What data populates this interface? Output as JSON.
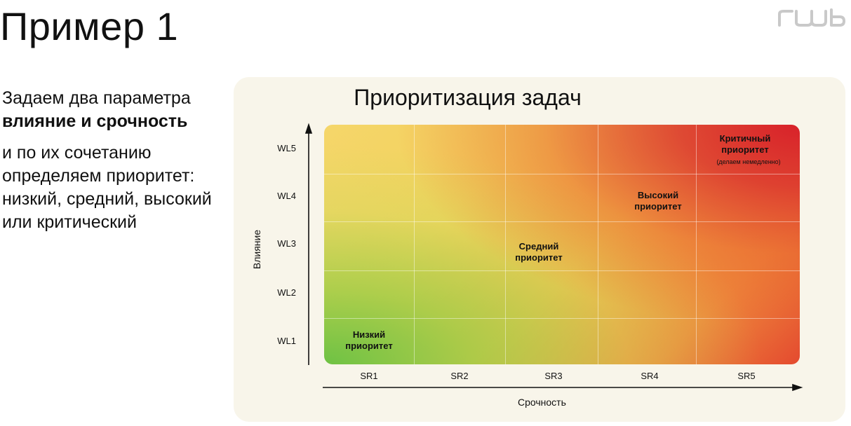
{
  "slide": {
    "title": "Пример 1",
    "logo_text": "RWB"
  },
  "left_text": {
    "line1": "Задаем два параметра",
    "line2_bold": "влияние и срочность",
    "para2": "и по их сочетанию определяем приоритет: низкий, средний, высокий или критический"
  },
  "chart_data": {
    "type": "heatmap",
    "title": "Приоритизация задач",
    "xlabel": "Срочность",
    "ylabel": "Влияние",
    "x_categories": [
      "SR1",
      "SR2",
      "SR3",
      "SR4",
      "SR5"
    ],
    "y_categories": [
      "WL1",
      "WL2",
      "WL3",
      "WL4",
      "WL5"
    ],
    "colors": {
      "low": "#6ec244",
      "mid": "#f3d15c",
      "high": "#ee8a3c",
      "critical": "#d8222a"
    },
    "zones": [
      {
        "label": "Низкий приоритет",
        "x": "SR1",
        "y": "WL1"
      },
      {
        "label": "Средний приоритет",
        "x": "SR3",
        "y": "WL3"
      },
      {
        "label": "Высокий приоритет",
        "x": "SR4",
        "y": "WL4"
      },
      {
        "label": "Критичный приоритет",
        "note": "(делаем немедленно)",
        "x": "SR5",
        "y": "WL5"
      }
    ]
  }
}
